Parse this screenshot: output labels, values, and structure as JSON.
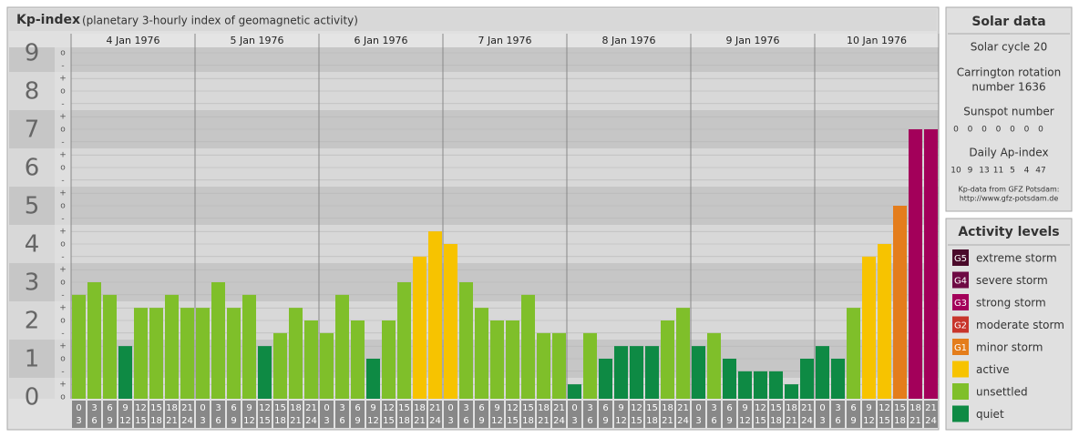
{
  "header": {
    "title": "Kp-index",
    "subtitle": "(planetary 3-hourly index of geomagnetic activity)"
  },
  "chart_data": {
    "type": "bar",
    "days": [
      "4 Jan 1976",
      "5 Jan 1976",
      "6 Jan 1976",
      "7 Jan 1976",
      "8 Jan 1976",
      "9 Jan 1976",
      "10 Jan 1976"
    ],
    "slot_labels": [
      [
        "0",
        "3"
      ],
      [
        "3",
        "6"
      ],
      [
        "6",
        "9"
      ],
      [
        "9",
        "12"
      ],
      [
        "12",
        "15"
      ],
      [
        "15",
        "18"
      ],
      [
        "18",
        "21"
      ],
      [
        "21",
        "24"
      ]
    ],
    "values": [
      2.67,
      3,
      2.67,
      1.33,
      2.33,
      2.33,
      2.67,
      2.33,
      2.33,
      3,
      2.33,
      2.67,
      1.33,
      1.67,
      2.33,
      2,
      1.67,
      2.67,
      2,
      1,
      2,
      3,
      3.67,
      4.33,
      4,
      3,
      2.33,
      2,
      2,
      2.67,
      1.67,
      1.67,
      0.33,
      1.67,
      1,
      1.33,
      1.33,
      1.33,
      2,
      2.33,
      1.33,
      1.67,
      1,
      0.67,
      0.67,
      0.67,
      0.33,
      1,
      1.33,
      1,
      2.33,
      3.67,
      4,
      5,
      7,
      7
    ],
    "colors": [
      "#7fbf2a",
      "#7fbf2a",
      "#7fbf2a",
      "#0e8a44",
      "#7fbf2a",
      "#7fbf2a",
      "#7fbf2a",
      "#7fbf2a",
      "#7fbf2a",
      "#7fbf2a",
      "#7fbf2a",
      "#7fbf2a",
      "#0e8a44",
      "#7fbf2a",
      "#7fbf2a",
      "#7fbf2a",
      "#7fbf2a",
      "#7fbf2a",
      "#7fbf2a",
      "#0e8a44",
      "#7fbf2a",
      "#7fbf2a",
      "#f7c300",
      "#f7c300",
      "#f7c300",
      "#7fbf2a",
      "#7fbf2a",
      "#7fbf2a",
      "#7fbf2a",
      "#7fbf2a",
      "#7fbf2a",
      "#7fbf2a",
      "#0e8a44",
      "#7fbf2a",
      "#0e8a44",
      "#0e8a44",
      "#0e8a44",
      "#0e8a44",
      "#7fbf2a",
      "#7fbf2a",
      "#0e8a44",
      "#7fbf2a",
      "#0e8a44",
      "#0e8a44",
      "#0e8a44",
      "#0e8a44",
      "#0e8a44",
      "#0e8a44",
      "#0e8a44",
      "#0e8a44",
      "#7fbf2a",
      "#f7c300",
      "#f7c300",
      "#e47d1c",
      "#a3005a",
      "#a3005a"
    ],
    "ylim": [
      0,
      9
    ],
    "yticks": [
      0,
      1,
      2,
      3,
      4,
      5,
      6,
      7,
      8,
      9
    ],
    "minor_ticks": [
      {
        "value": 0,
        "label": "o"
      },
      {
        "value": 0.33,
        "label": "+"
      },
      {
        "value": 0.67,
        "label": "-"
      },
      {
        "value": 1,
        "label": "o"
      },
      {
        "value": 1.33,
        "label": "+"
      },
      {
        "value": 1.67,
        "label": "-"
      },
      {
        "value": 2,
        "label": "o"
      },
      {
        "value": 2.33,
        "label": "+"
      },
      {
        "value": 2.67,
        "label": "-"
      },
      {
        "value": 3,
        "label": "o"
      },
      {
        "value": 3.33,
        "label": "+"
      },
      {
        "value": 3.67,
        "label": "-"
      },
      {
        "value": 4,
        "label": "o"
      },
      {
        "value": 4.33,
        "label": "+"
      },
      {
        "value": 4.67,
        "label": "-"
      },
      {
        "value": 5,
        "label": "o"
      },
      {
        "value": 5.33,
        "label": "+"
      },
      {
        "value": 5.67,
        "label": "-"
      },
      {
        "value": 6,
        "label": "o"
      },
      {
        "value": 6.33,
        "label": "+"
      },
      {
        "value": 6.67,
        "label": "-"
      },
      {
        "value": 7,
        "label": "o"
      },
      {
        "value": 7.33,
        "label": "+"
      },
      {
        "value": 7.67,
        "label": "-"
      },
      {
        "value": 8,
        "label": "o"
      },
      {
        "value": 8.33,
        "label": "+"
      },
      {
        "value": 8.67,
        "label": "-"
      },
      {
        "value": 9,
        "label": "o"
      }
    ],
    "grid": true
  },
  "solar_data": {
    "title": "Solar data",
    "cycle": "Solar cycle 20",
    "carrington": [
      "Carrington rotation",
      "number 1636"
    ],
    "sunspot_title": "Sunspot number",
    "sunspot": [
      0,
      0,
      0,
      0,
      0,
      0,
      0
    ],
    "ap_title": "Daily Ap-index",
    "ap": [
      10,
      9,
      13,
      11,
      5,
      4,
      47
    ],
    "credit": [
      "Kp-data from GFZ Potsdam:",
      "http://www.gfz-potsdam.de"
    ]
  },
  "activity_levels": {
    "title": "Activity levels",
    "items": [
      {
        "badge": "G5",
        "label": "extreme storm",
        "color": "#4a0a2a"
      },
      {
        "badge": "G4",
        "label": "severe storm",
        "color": "#6e0a44"
      },
      {
        "badge": "G3",
        "label": "strong storm",
        "color": "#a3005a"
      },
      {
        "badge": "G2",
        "label": "moderate storm",
        "color": "#c8352b"
      },
      {
        "badge": "G1",
        "label": "minor storm",
        "color": "#e47d1c"
      },
      {
        "label": "active",
        "color": "#f7c300"
      },
      {
        "label": "unsettled",
        "color": "#7fbf2a"
      },
      {
        "label": "quiet",
        "color": "#0e8a44"
      }
    ]
  }
}
